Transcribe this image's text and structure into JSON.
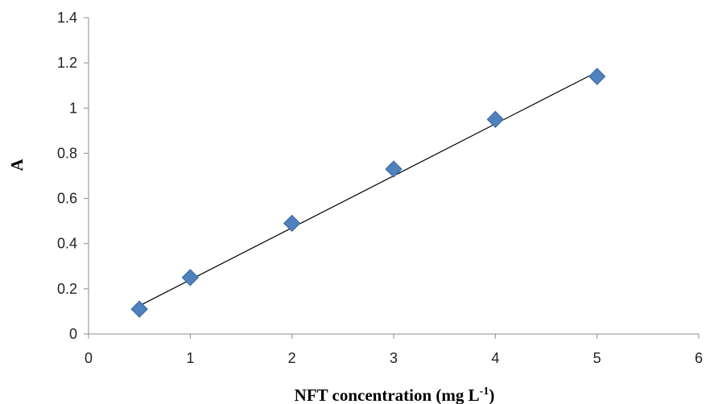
{
  "chart_data": {
    "type": "scatter",
    "title": "",
    "xlabel": "NFT concentration (mg L",
    "xlabel_sup": "-1",
    "xlabel_end": ")",
    "ylabel": "A",
    "xlim": [
      0,
      6
    ],
    "ylim": [
      0,
      1.4
    ],
    "x_ticks": [
      "0",
      "1",
      "2",
      "3",
      "4",
      "5",
      "6"
    ],
    "y_ticks": [
      "0",
      "0.2",
      "0.4",
      "0.6",
      "0.8",
      "1",
      "1.2",
      "1.4"
    ],
    "grid": false,
    "legend": "none",
    "series": [
      {
        "x": [
          0.5,
          1,
          2,
          3,
          4,
          5
        ],
        "y": [
          0.11,
          0.25,
          0.49,
          0.73,
          0.95,
          1.14
        ],
        "marker": "diamond",
        "color": "#4F81BD"
      }
    ],
    "trendline": {
      "type": "linear",
      "x": [
        0.5,
        5
      ],
      "y": [
        0.125,
        1.16
      ],
      "color": "#000000"
    }
  }
}
